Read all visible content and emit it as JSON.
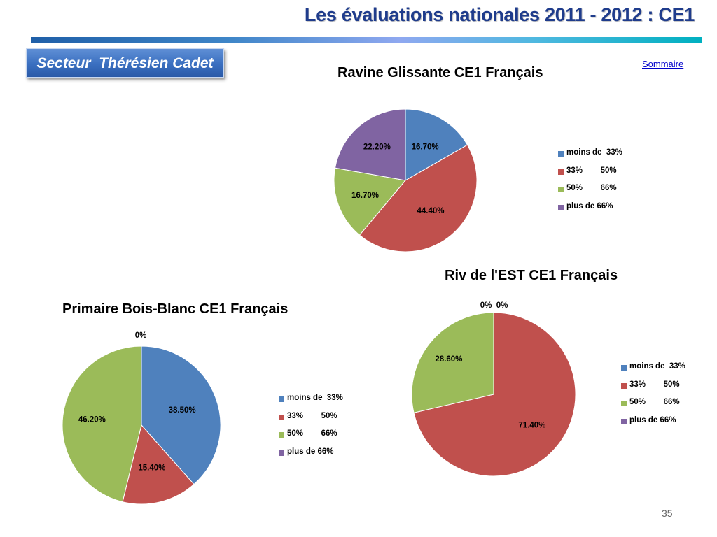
{
  "header": {
    "title": "Les évaluations nationales 2011 - 2012 : CE1",
    "sector": "Secteur  Thérésien Cadet",
    "sommaire": "Sommaire"
  },
  "legend_labels": [
    "moins de  33%",
    "33%        50%",
    "50%        66%",
    "plus de 66%"
  ],
  "colors": [
    "#4f81bd",
    "#c0504d",
    "#9bbb59",
    "#8064a2"
  ],
  "page_number": "35",
  "chart_data": [
    {
      "type": "pie",
      "title": "Ravine Glissante CE1 Français",
      "categories": [
        "moins de  33%",
        "33%        50%",
        "50%        66%",
        "plus de 66%"
      ],
      "values": [
        16.7,
        44.4,
        16.7,
        22.2
      ],
      "labels": [
        "16.70%",
        "44.40%",
        "16.70%",
        "22.20%"
      ],
      "legend": "right"
    },
    {
      "type": "pie",
      "title": "Primaire Bois-Blanc CE1 Français",
      "categories": [
        "moins de  33%",
        "33%        50%",
        "50%        66%",
        "plus de 66%"
      ],
      "values": [
        38.5,
        15.4,
        46.2,
        0
      ],
      "labels": [
        "38.50%",
        "15.40%",
        "46.20%",
        "0%"
      ],
      "legend": "right"
    },
    {
      "type": "pie",
      "title": "Riv de l'EST CE1 Français",
      "categories": [
        "moins de  33%",
        "33%        50%",
        "50%        66%",
        "plus de 66%"
      ],
      "values": [
        0,
        71.4,
        28.6,
        0
      ],
      "labels": [
        "0%",
        "71.40%",
        "28.60%",
        "0%"
      ],
      "legend": "right"
    }
  ]
}
